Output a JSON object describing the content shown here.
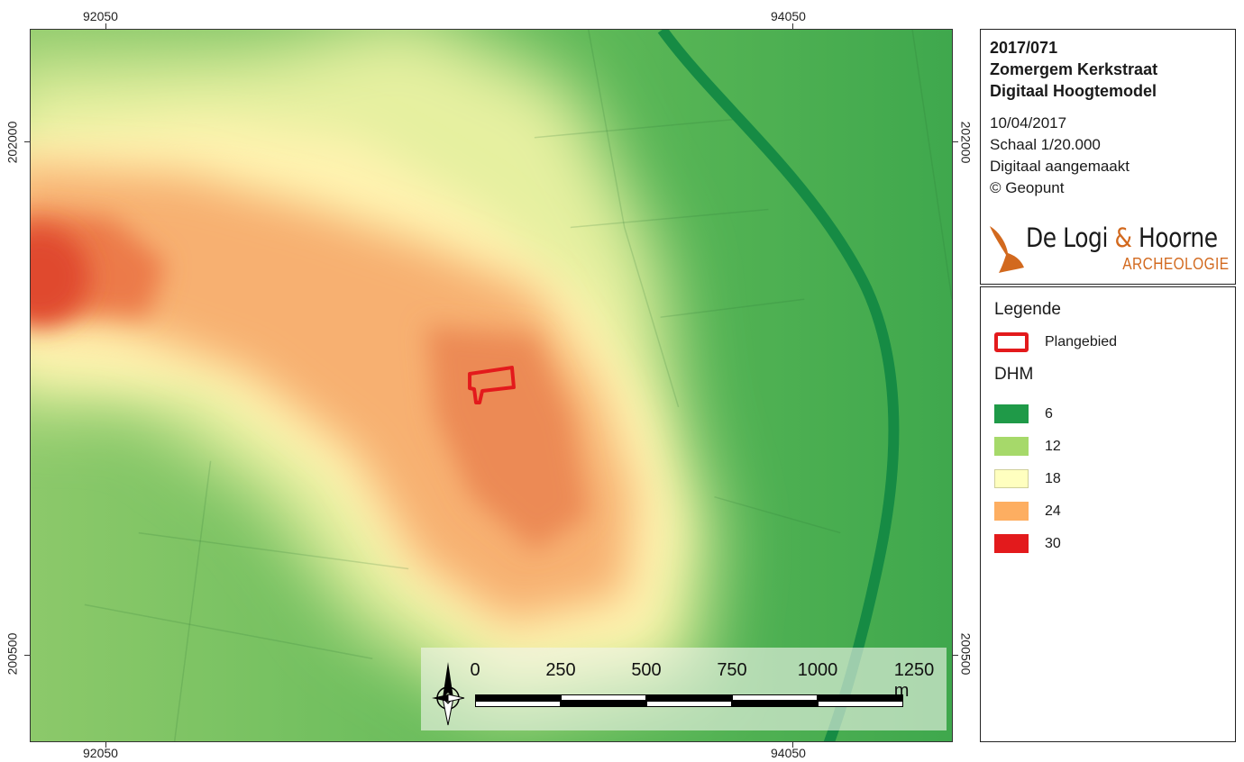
{
  "coords": {
    "top_left": "92050",
    "top_right": "94050",
    "bottom_left": "92050",
    "bottom_right": "94050",
    "left_top": "202000",
    "left_bottom": "200500",
    "right_top": "202000",
    "right_bottom": "200500"
  },
  "title": {
    "line1": "2017/071",
    "line2": "Zomergem Kerkstraat",
    "line3": "Digitaal Hoogtemodel",
    "date": "10/04/2017",
    "scale": "Schaal 1/20.000",
    "made": "Digitaal aangemaakt",
    "source": "© Geopunt"
  },
  "logo": {
    "name_part1": "De Logi",
    "ampersand": "&",
    "name_part2": "Hoorne",
    "subtitle": "ARCHEOLOGIE"
  },
  "legend": {
    "heading": "Legende",
    "plangebied_label": "Plangebied",
    "dhm_heading": "DHM",
    "classes": [
      {
        "label": "6",
        "color": "#1f9a48"
      },
      {
        "label": "12",
        "color": "#a6d96a"
      },
      {
        "label": "18",
        "color": "#ffffbf"
      },
      {
        "label": "24",
        "color": "#fdae61"
      },
      {
        "label": "30",
        "color": "#e31a1c"
      }
    ]
  },
  "scalebar": {
    "labels": [
      "0",
      "250",
      "500",
      "750",
      "1000",
      "1250 m"
    ]
  },
  "colors": {
    "plangebied": "#e31a1c",
    "canal": "#158a45",
    "accent_logo": "#d2691e"
  },
  "north_arrow": "north-arrow-icon"
}
